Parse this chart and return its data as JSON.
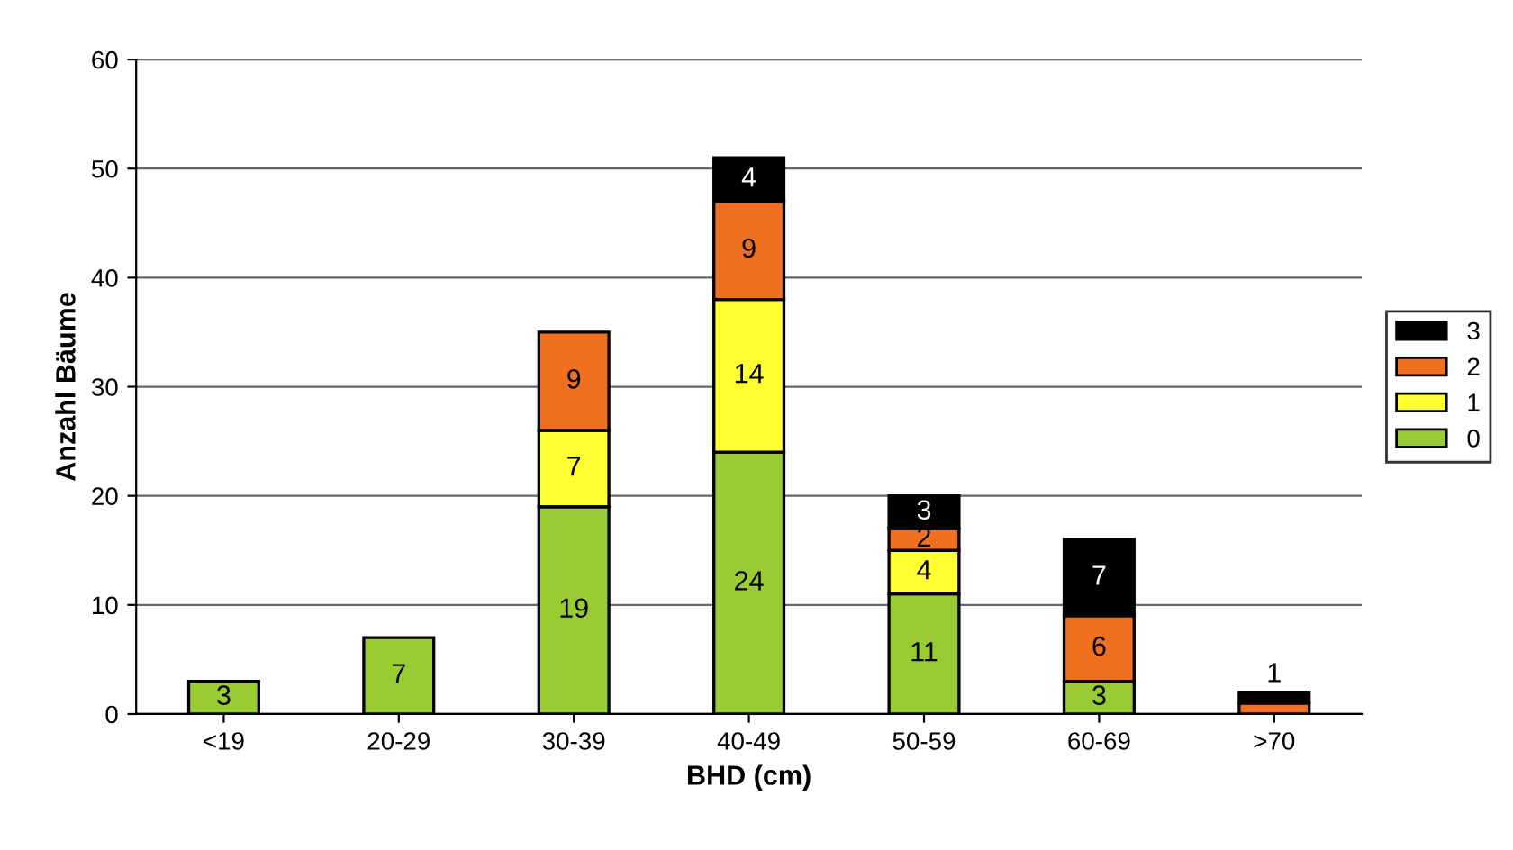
{
  "chart_data": {
    "type": "bar",
    "stacked": true,
    "xlabel": "BHD (cm)",
    "ylabel": "Anzahl Bäume",
    "categories": [
      "<19",
      "20-29",
      "30-39",
      "40-49",
      "50-59",
      "60-69",
      ">70"
    ],
    "series": [
      {
        "name": "0",
        "color": "#99cc33",
        "values": [
          3,
          7,
          19,
          24,
          11,
          3,
          null
        ],
        "value_labels": [
          "3",
          "7",
          "19",
          "24",
          "11",
          "3",
          null
        ]
      },
      {
        "name": "1",
        "color": "#ffff33",
        "values": [
          null,
          null,
          7,
          14,
          4,
          null,
          null
        ],
        "value_labels": [
          null,
          null,
          "7",
          "14",
          "4",
          null,
          null
        ]
      },
      {
        "name": "2",
        "color": "#f07020",
        "values": [
          null,
          null,
          9,
          9,
          2,
          6,
          1
        ],
        "value_labels": [
          null,
          null,
          "9",
          "9",
          "2",
          "6",
          null
        ]
      },
      {
        "name": "3",
        "color": "#000000",
        "values": [
          null,
          null,
          null,
          4,
          3,
          7,
          1
        ],
        "value_labels": [
          null,
          null,
          null,
          "4",
          "3",
          "7",
          "1"
        ]
      }
    ],
    "ylim": [
      0,
      60
    ],
    "yticks": [
      0,
      10,
      20,
      30,
      40,
      50,
      60
    ],
    "grid": "y",
    "legend": "right"
  }
}
